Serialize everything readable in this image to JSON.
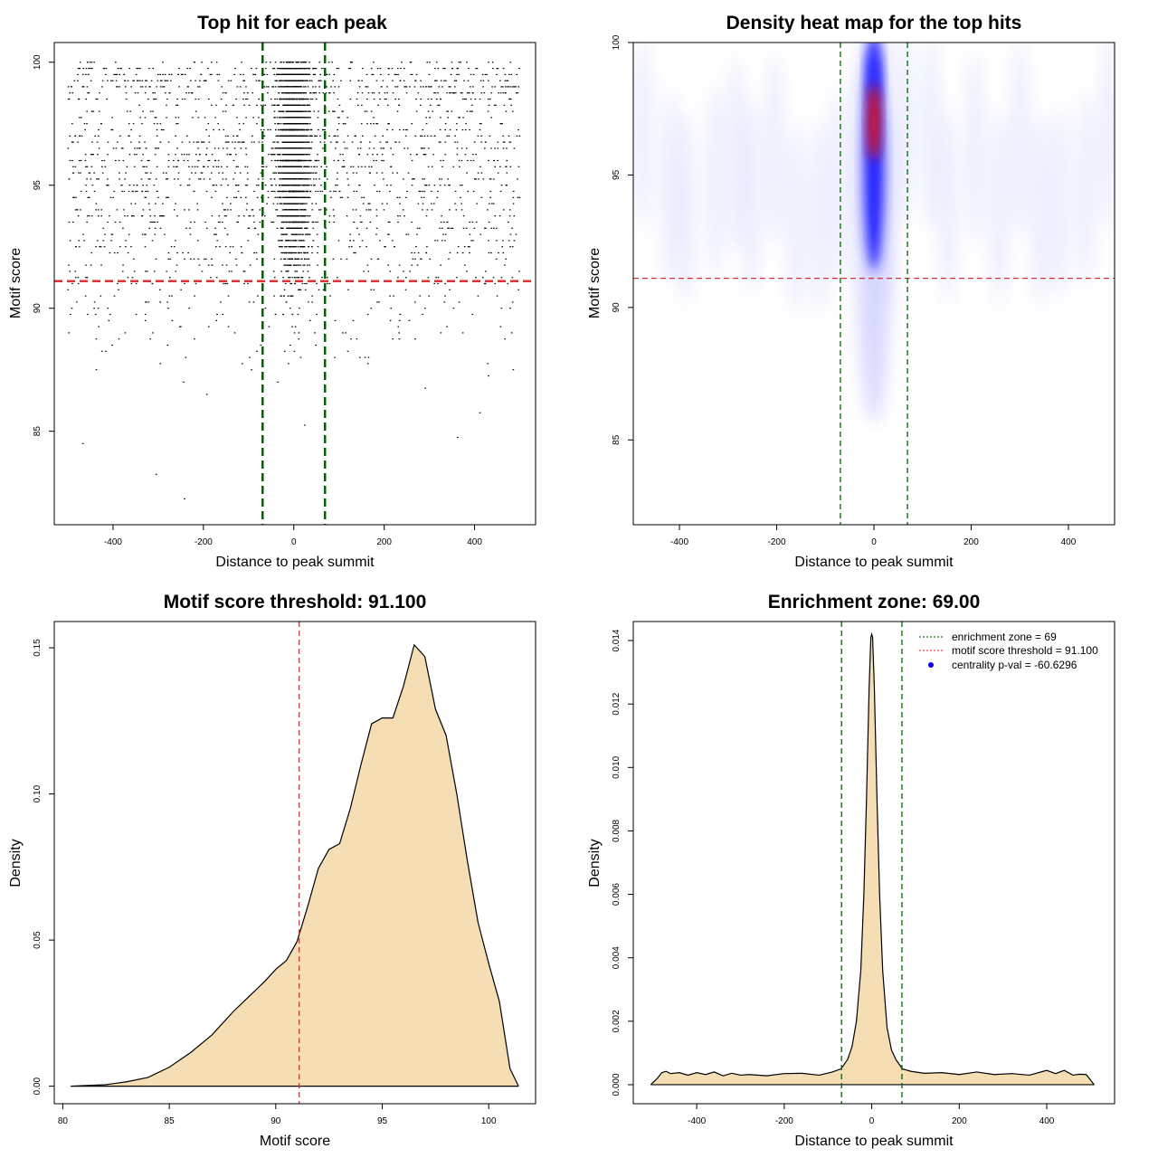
{
  "chart_data": [
    {
      "type": "scatter",
      "title": "Top hit for each peak",
      "xlabel": "Distance to peak summit",
      "ylabel": "Motif score",
      "xlim": [
        -530,
        535
      ],
      "ylim": [
        81.2,
        100.8
      ],
      "xticks": [
        "-400",
        "-200",
        "0",
        "200",
        "400"
      ],
      "xtick_values": [
        -400,
        -200,
        0,
        200,
        400
      ],
      "yticks": [
        "85",
        "90",
        "95",
        "100"
      ],
      "ytick_values": [
        85,
        90,
        95,
        100
      ],
      "hlines": [
        {
          "y": 91.1,
          "color": "#dd3333",
          "style": "dashed"
        }
      ],
      "vlines": [
        {
          "x": -69,
          "color": "#006400",
          "style": "dashed"
        },
        {
          "x": 69,
          "color": "#006400",
          "style": "dashed"
        }
      ],
      "point_color": "#000000",
      "description_points": "approx. 5000 points; dense column within |x|<70 around motif scores 88–100, uniform background across x from -500 to 500"
    },
    {
      "type": "heatmap",
      "title": "Density heat map for the top hits",
      "xlabel": "Distance to peak summit",
      "ylabel": "Motif score",
      "xlim": [
        -495,
        495
      ],
      "ylim": [
        81.8,
        100
      ],
      "xticks": [
        "-400",
        "-200",
        "0",
        "200",
        "400"
      ],
      "xtick_values": [
        -400,
        -200,
        0,
        200,
        400
      ],
      "yticks": [
        "85",
        "90",
        "95",
        "100"
      ],
      "ytick_values": [
        85,
        90,
        95,
        100
      ],
      "hlines": [
        {
          "y": 91.1,
          "color": "#dd3333",
          "style": "dashed"
        }
      ],
      "vlines": [
        {
          "x": -69,
          "color": "#006400",
          "style": "dashed"
        },
        {
          "x": 69,
          "color": "#006400",
          "style": "dashed"
        }
      ],
      "color_scale": [
        "#ffffff",
        "#0000ff",
        "#ff0000"
      ],
      "peak": {
        "x": 0,
        "y": 97
      }
    },
    {
      "type": "area",
      "title": "Motif score threshold: 91.100",
      "xlabel": "Motif score",
      "ylabel": "Density",
      "xlim": [
        79.6,
        102.2
      ],
      "ylim": [
        -0.006,
        0.159
      ],
      "xticks": [
        "80",
        "85",
        "90",
        "95",
        "100"
      ],
      "xtick_values": [
        80,
        85,
        90,
        95,
        100
      ],
      "yticks": [
        "0.00",
        "0.05",
        "0.10",
        "0.15"
      ],
      "ytick_values": [
        0,
        0.05,
        0.1,
        0.15
      ],
      "fill": "#f5deb3",
      "vlines": [
        {
          "x": 91.1,
          "color": "#dd3333",
          "style": "dashed"
        }
      ],
      "x": [
        80.4,
        82,
        83,
        84,
        85,
        86,
        87,
        88,
        88.5,
        89,
        89.5,
        90,
        90.5,
        91,
        91.5,
        92,
        92.5,
        93,
        93.5,
        94,
        94.5,
        95,
        95.5,
        96,
        96.5,
        97,
        97.5,
        98,
        98.5,
        99,
        99.5,
        100,
        100.5,
        101,
        101.4
      ],
      "y": [
        0,
        0.0005,
        0.0015,
        0.003,
        0.0065,
        0.0115,
        0.0175,
        0.0255,
        0.029,
        0.0325,
        0.036,
        0.04,
        0.043,
        0.0495,
        0.0615,
        0.0745,
        0.081,
        0.083,
        0.095,
        0.11,
        0.124,
        0.126,
        0.126,
        0.137,
        0.151,
        0.147,
        0.129,
        0.12,
        0.1,
        0.077,
        0.056,
        0.042,
        0.029,
        0.006,
        0
      ]
    },
    {
      "type": "area",
      "title": "Enrichment zone: 69.00",
      "xlabel": "Distance to peak summit",
      "ylabel": "Density",
      "xlim": [
        -545,
        555
      ],
      "ylim": [
        -0.0006,
        0.0146
      ],
      "xticks": [
        "-400",
        "-200",
        "0",
        "200",
        "400"
      ],
      "xtick_values": [
        -400,
        -200,
        0,
        200,
        400
      ],
      "yticks": [
        "0.000",
        "0.002",
        "0.004",
        "0.006",
        "0.008",
        "0.010",
        "0.012",
        "0.014"
      ],
      "ytick_values": [
        0,
        0.002,
        0.004,
        0.006,
        0.008,
        0.01,
        0.012,
        0.014
      ],
      "fill": "#f5deb3",
      "vlines": [
        {
          "x": -69,
          "color": "#006400",
          "style": "dashed"
        },
        {
          "x": 69,
          "color": "#006400",
          "style": "dashed"
        }
      ],
      "x": [
        -505,
        -490,
        -480,
        -470,
        -460,
        -440,
        -420,
        -400,
        -380,
        -360,
        -340,
        -320,
        -300,
        -280,
        -240,
        -200,
        -160,
        -120,
        -90,
        -70,
        -55,
        -45,
        -35,
        -25,
        -18,
        -12,
        -6,
        -2,
        0,
        2,
        6,
        12,
        18,
        25,
        35,
        45,
        55,
        70,
        90,
        120,
        160,
        200,
        240,
        280,
        320,
        360,
        400,
        420,
        440,
        460,
        475,
        490,
        500,
        508
      ],
      "y": [
        0,
        0.0002,
        0.00038,
        0.00042,
        0.00035,
        0.00038,
        0.0003,
        0.00038,
        0.00032,
        0.0004,
        0.00028,
        0.00036,
        0.0003,
        0.00032,
        0.00028,
        0.00035,
        0.00036,
        0.0003,
        0.0004,
        0.0005,
        0.0008,
        0.0012,
        0.002,
        0.0036,
        0.006,
        0.009,
        0.0125,
        0.0141,
        0.0142,
        0.0141,
        0.0125,
        0.009,
        0.006,
        0.0036,
        0.0018,
        0.0011,
        0.0008,
        0.0005,
        0.00042,
        0.00036,
        0.00038,
        0.00032,
        0.0004,
        0.00032,
        0.00035,
        0.0003,
        0.00045,
        0.00035,
        0.00045,
        0.0003,
        0.00033,
        0.00032,
        0.00015,
        0
      ],
      "legend": [
        {
          "label": "enrichment zone = 69",
          "color": "#1a8a1a",
          "kind": "dotted-line"
        },
        {
          "label": "motif score threshold = 91.100",
          "color": "#ee4444",
          "kind": "dotted-line"
        },
        {
          "label": "centrality p-val = -60.6296",
          "color": "#0000ee",
          "kind": "point"
        }
      ],
      "legend_position": "top-right"
    }
  ]
}
